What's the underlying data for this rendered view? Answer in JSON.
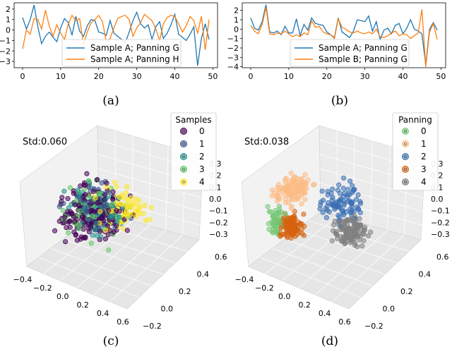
{
  "chart_data": [
    {
      "type": "line",
      "panel": "(a)",
      "xlim": [
        0,
        49
      ],
      "ylim": [
        -3.6,
        2.6
      ],
      "xticks": [
        0,
        10,
        20,
        30,
        40,
        50
      ],
      "yticks": [
        2,
        1,
        0,
        -1,
        -2,
        -3
      ],
      "legend": [
        "Sample A; Panning G",
        "Sample A; Panning H"
      ],
      "legend_position": "bottom-center",
      "series": [
        {
          "name": "Sample A; Panning G",
          "color": "#1f77b4",
          "values": [
            1.2,
            0.1,
            1.0,
            2.4,
            0.3,
            -1.3,
            -0.6,
            -0.2,
            -0.7,
            -1.1,
            0.2,
            1.1,
            0.7,
            -0.5,
            1.3,
            -0.1,
            -0.6,
            0.4,
            1.0,
            0.9,
            -0.2,
            -0.3,
            -0.5,
            0.9,
            -0.3,
            -0.6,
            -0.9,
            -1.2,
            -0.2,
            0.9,
            1.7,
            0.6,
            0.2,
            0.5,
            -0.9,
            0.3,
            0.8,
            -0.8,
            -0.3,
            0.5,
            1.5,
            -0.4,
            -0.7,
            -1.0,
            -0.4,
            0.3,
            -3.4,
            -0.8,
            0.6,
            -0.9
          ]
        },
        {
          "name": "Sample A; Panning H",
          "color": "#ff7f0e",
          "values": [
            -1.8,
            0.0,
            -0.4,
            1.1,
            1.0,
            0.1,
            1.9,
            0.4,
            -0.6,
            0.5,
            -0.3,
            -0.9,
            0.6,
            1.4,
            0.9,
            1.1,
            -1.4,
            -0.2,
            0.7,
            1.0,
            1.4,
            0.8,
            -1.1,
            -0.8,
            0.2,
            1.1,
            1.3,
            1.4,
            1.0,
            -0.6,
            0.2,
            0.7,
            1.5,
            1.2,
            0.9,
            0.1,
            -1.0,
            0.6,
            1.2,
            1.4,
            1.3,
            0.6,
            -0.2,
            0.4,
            1.3,
            0.9,
            -0.3,
            1.3,
            -1.9,
            1.0
          ]
        }
      ]
    },
    {
      "type": "line",
      "panel": "(b)",
      "xlim": [
        0,
        49
      ],
      "ylim": [
        -4.1,
        2.8
      ],
      "xticks": [
        0,
        10,
        20,
        30,
        40,
        50
      ],
      "yticks": [
        2,
        1,
        0,
        -1,
        -2,
        -3,
        -4
      ],
      "legend": [
        "Sample A; Panning G",
        "Sample B; Panning G"
      ],
      "legend_position": "bottom-center",
      "series": [
        {
          "name": "Sample A; Panning G",
          "color": "#1f77b4",
          "values": [
            1.2,
            0.1,
            -0.1,
            0.8,
            2.6,
            -0.3,
            -0.4,
            -0.2,
            -0.6,
            0.3,
            -0.4,
            -0.4,
            1.1,
            -0.7,
            0.5,
            -0.1,
            1.2,
            0.6,
            0.5,
            0.4,
            -0.3,
            -0.6,
            -0.9,
            1.2,
            -0.3,
            -0.6,
            -0.9,
            -0.2,
            1.0,
            0.9,
            0.8,
            1.4,
            -0.2,
            0.8,
            -1.1,
            -0.1,
            0.1,
            -0.5,
            0.4,
            0.6,
            -0.5,
            0.1,
            1.0,
            0.0,
            -0.2,
            -0.5,
            -3.8,
            0.0,
            0.7,
            -0.1
          ]
        },
        {
          "name": "Sample B; Panning G",
          "color": "#ff7f0e",
          "values": [
            0.4,
            -0.2,
            -0.5,
            0.5,
            2.3,
            -0.5,
            -0.6,
            -0.4,
            -0.5,
            -0.2,
            -0.5,
            -0.8,
            -0.6,
            -0.8,
            -0.4,
            -0.6,
            0.9,
            0.2,
            0.3,
            -0.3,
            -0.5,
            -0.6,
            -1.0,
            1.1,
            0.2,
            0.0,
            -0.3,
            -0.4,
            -0.2,
            -0.4,
            -0.5,
            -0.3,
            -0.5,
            0.0,
            -0.8,
            -0.9,
            -0.7,
            -0.4,
            -0.2,
            -0.7,
            -0.5,
            -0.6,
            -1.0,
            -0.7,
            -0.4,
            2.1,
            -4.0,
            -0.3,
            0.6,
            -1.1
          ]
        }
      ]
    },
    {
      "type": "scatter",
      "panel": "(c)",
      "annotation": "Std:0.060",
      "legend_title": "Samples",
      "legend": [
        "0",
        "1",
        "2",
        "3",
        "4"
      ],
      "colors": [
        "#440154",
        "#3b528b",
        "#21918c",
        "#5ec962",
        "#fde725"
      ],
      "x_ticks": [
        "-0.4",
        "-0.2",
        "0.0",
        "0.2",
        "0.4",
        "0.6"
      ],
      "y_ticks": [
        "0.6",
        "0.4",
        "0.2",
        "0.0",
        "-0.2"
      ],
      "z_ticks": [
        "0.3",
        "0.2",
        "0.1",
        "0.0",
        "-0.1",
        "-0.2",
        "-0.3"
      ]
    },
    {
      "type": "scatter",
      "panel": "(d)",
      "annotation": "Std:0.038",
      "legend_title": "Panning",
      "legend": [
        "0",
        "1",
        "2",
        "3",
        "4"
      ],
      "colors": [
        "#77c776",
        "#fdbb84",
        "#3a6fb5",
        "#d6620f",
        "#808080"
      ],
      "x_ticks": [
        "-0.4",
        "-0.2",
        "0.0",
        "0.2",
        "0.4",
        "0.6"
      ],
      "y_ticks": [
        "0.6",
        "0.4",
        "0.2",
        "0.0",
        "-0.2"
      ],
      "z_ticks": [
        "0.3",
        "0.2",
        "0.1",
        "0.0",
        "-0.1",
        "-0.2",
        "-0.3"
      ]
    }
  ],
  "captions": [
    "(a)",
    "(b)",
    "(c)",
    "(d)"
  ]
}
